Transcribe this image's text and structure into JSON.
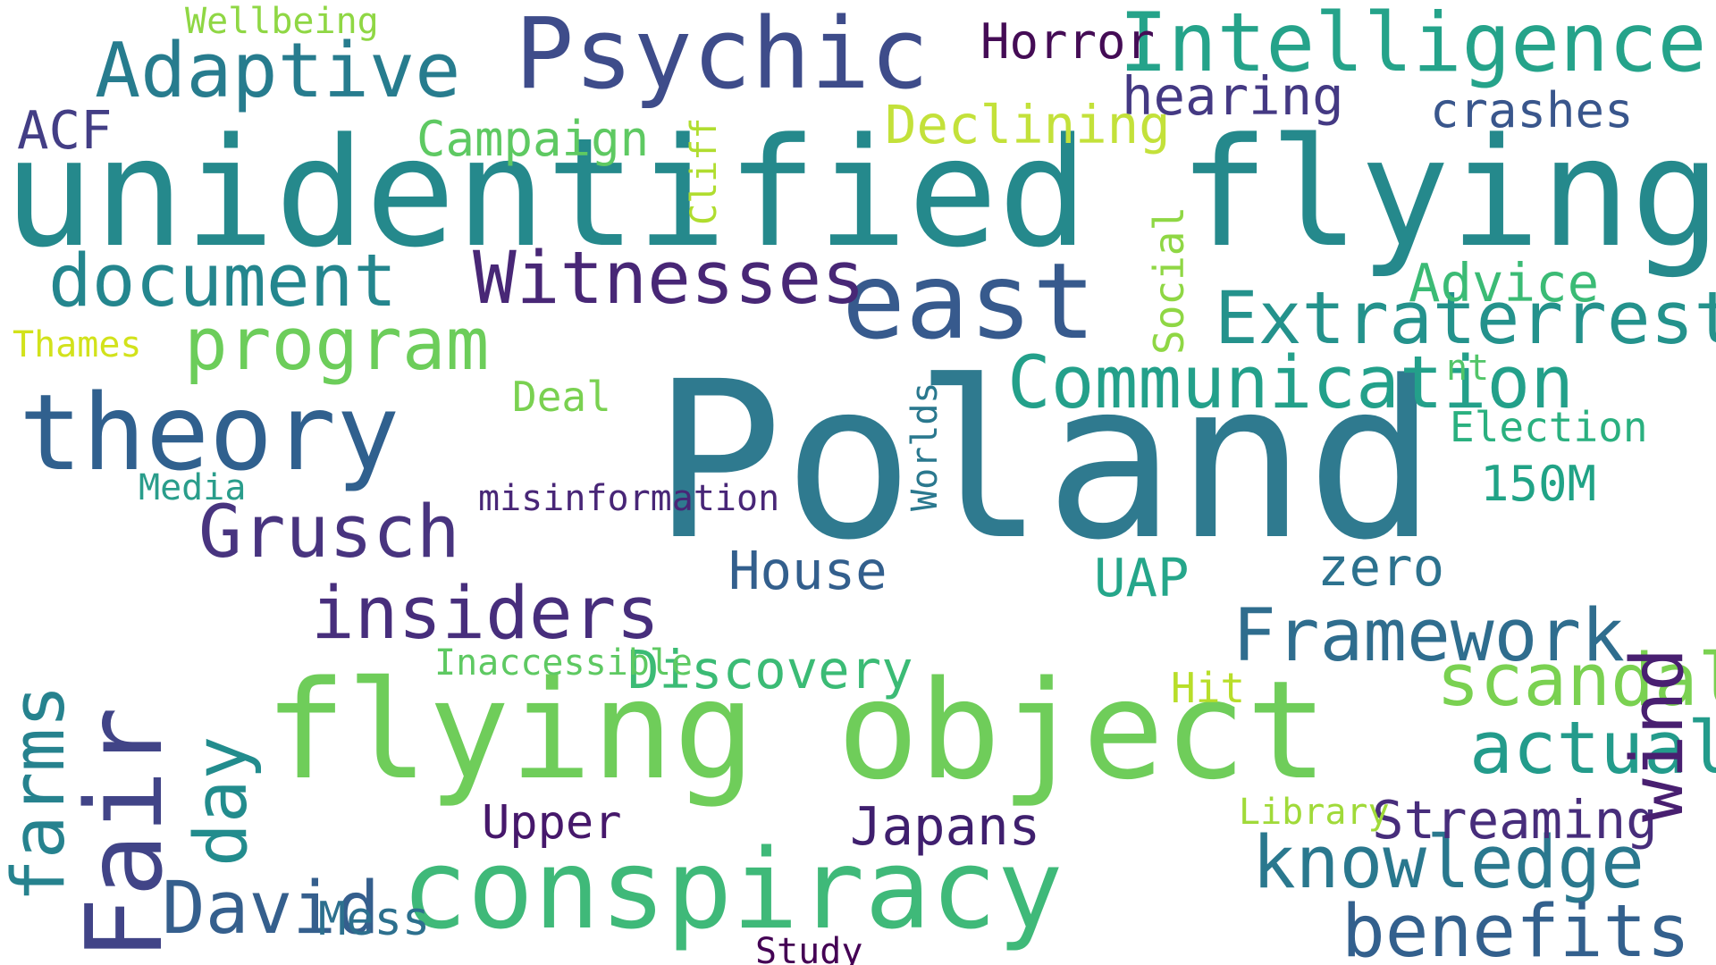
{
  "words": [
    {
      "text": "Poland",
      "color": "#2f7a8f"
    },
    {
      "text": "unidentified flying",
      "color": "#25898c"
    },
    {
      "text": "flying object",
      "color": "#6fcd5a"
    },
    {
      "text": "conspiracy",
      "color": "#3fb979"
    },
    {
      "text": "east",
      "color": "#375a8d"
    },
    {
      "text": "theory",
      "color": "#30608e"
    },
    {
      "text": "Psychic",
      "color": "#3e4c8a"
    },
    {
      "text": "Intelligence",
      "color": "#25a38a"
    },
    {
      "text": "Adaptive",
      "color": "#277c8e"
    },
    {
      "text": "program",
      "color": "#6ccd5a"
    },
    {
      "text": "insiders",
      "color": "#472e7c"
    },
    {
      "text": "Grusch",
      "color": "#48347f"
    },
    {
      "text": "Communication",
      "color": "#23a08a"
    },
    {
      "text": "Extraterrestrial",
      "color": "#24928c"
    },
    {
      "text": "Framework",
      "color": "#2f6d8e"
    },
    {
      "text": "document",
      "color": "#24868e"
    },
    {
      "text": "Witnesses",
      "color": "#482776"
    },
    {
      "text": "knowledge",
      "color": "#2a788e"
    },
    {
      "text": "benefits",
      "color": "#33608d"
    },
    {
      "text": "scandal",
      "color": "#7ad151"
    },
    {
      "text": "actual",
      "color": "#239b8b"
    },
    {
      "text": "Discovery",
      "color": "#3bbb75"
    },
    {
      "text": "David",
      "color": "#355f8d"
    },
    {
      "text": "zero",
      "color": "#2c728e"
    },
    {
      "text": "UAP",
      "color": "#25a68a"
    },
    {
      "text": "hearing",
      "color": "#443983"
    },
    {
      "text": "ACF",
      "color": "#433e85"
    },
    {
      "text": "Declining",
      "color": "#c3e13a"
    },
    {
      "text": "Advice",
      "color": "#3bbb75"
    },
    {
      "text": "Streaming",
      "color": "#472d7b"
    },
    {
      "text": "Japans",
      "color": "#3f1f6e"
    },
    {
      "text": "Upper",
      "color": "#46186b"
    },
    {
      "text": "House",
      "color": "#335f8d"
    },
    {
      "text": "crashes",
      "color": "#39568c"
    },
    {
      "text": "Horror",
      "color": "#440c55"
    },
    {
      "text": "Campaign",
      "color": "#5ec962"
    },
    {
      "text": "150M",
      "color": "#20a386"
    },
    {
      "text": "Election",
      "color": "#2ab07f"
    },
    {
      "text": "Deal",
      "color": "#7ad151"
    },
    {
      "text": "Hit",
      "color": "#b8de29"
    },
    {
      "text": "Mess",
      "color": "#2d708e"
    },
    {
      "text": "Study",
      "color": "#440154"
    },
    {
      "text": "Media",
      "color": "#2a9d8b"
    },
    {
      "text": "Thames",
      "color": "#d2e21b"
    },
    {
      "text": "nt",
      "color": "#52c569"
    },
    {
      "text": "misinformation",
      "color": "#482677"
    },
    {
      "text": "Inaccessible",
      "color": "#5ec962"
    },
    {
      "text": "Library",
      "color": "#a0da39"
    },
    {
      "text": "Wellbeing",
      "color": "#8fd744"
    },
    {
      "text": "Fair",
      "color": "#414487"
    },
    {
      "text": "farms",
      "color": "#26828e"
    },
    {
      "text": "day",
      "color": "#228c8d"
    },
    {
      "text": "wind",
      "color": "#481f70"
    },
    {
      "text": "Social",
      "color": "#8fd744"
    },
    {
      "text": "Worlds",
      "color": "#2a788e"
    },
    {
      "text": "Cliff",
      "color": "#b0dd2f"
    }
  ]
}
